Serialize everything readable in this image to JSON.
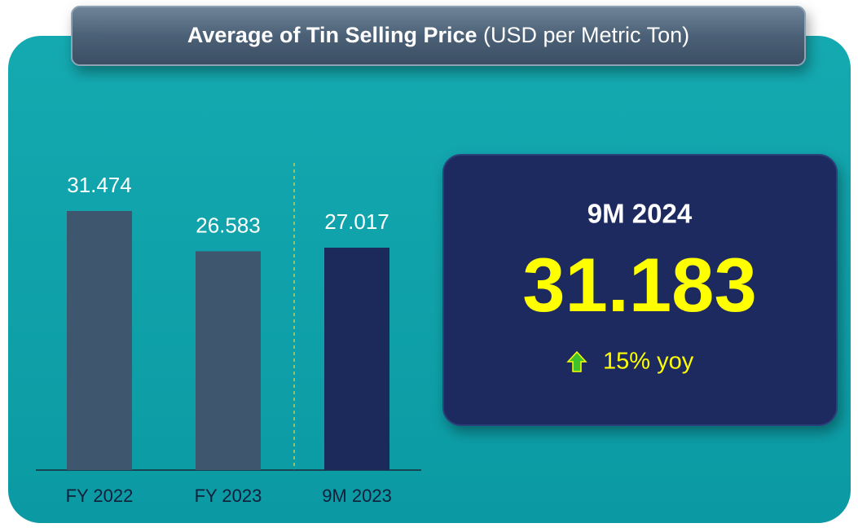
{
  "chart_data": {
    "type": "bar",
    "title": "Average of Tin Selling Price",
    "subtitle": "(USD per Metric Ton)",
    "categories": [
      "FY 2022",
      "FY 2023",
      "9M 2023"
    ],
    "values": [
      31.474,
      26.583,
      27.017
    ],
    "colors": [
      "#3e576f",
      "#3e576f",
      "#1b2a5b"
    ],
    "highlight": {
      "period": "9M 2024",
      "value": 31.183,
      "change": {
        "value": 15,
        "label": "15% yoy"
      }
    }
  }
}
